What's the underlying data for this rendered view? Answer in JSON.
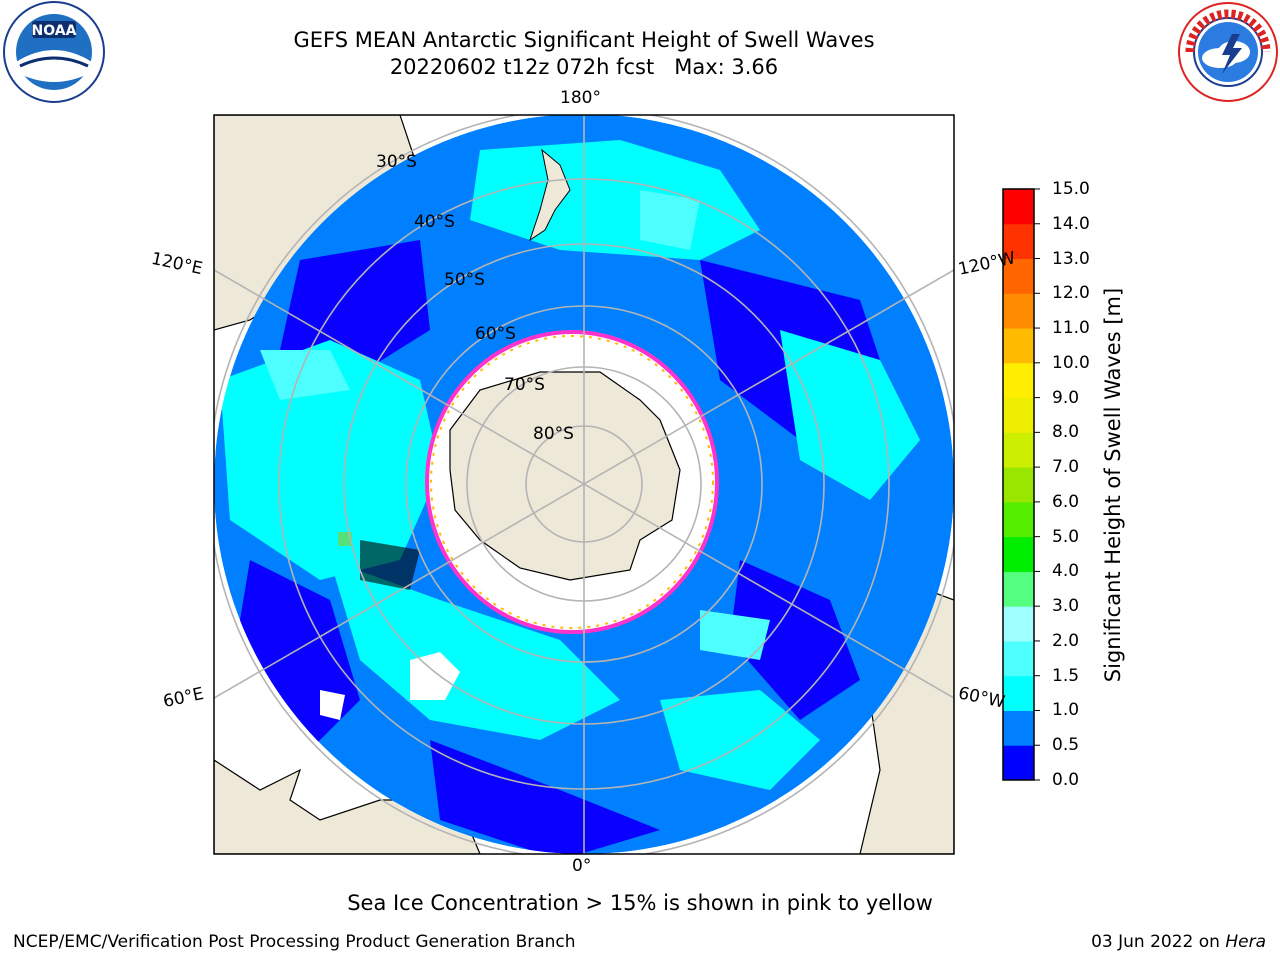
{
  "title": {
    "line1": "GEFS MEAN Antarctic Significant Height of Swell Waves",
    "line2": "20220602 t12z 072h fcst   Max: 3.66"
  },
  "logos": {
    "left": "noaa-logo",
    "right": "national-weather-service-logo"
  },
  "map": {
    "projection": "south-polar-stereographic",
    "longitude_labels": {
      "top": "180°",
      "bottom": "0°",
      "upper_left": "120°E",
      "lower_left": "60°E",
      "upper_right": "120°W",
      "lower_right": "60°W"
    },
    "latitude_labels": [
      "30°S",
      "40°S",
      "50°S",
      "60°S",
      "70°S",
      "80°S"
    ],
    "colors": {
      "ocean_low": "#0a00ff",
      "ocean_mid": "#0080ff",
      "ocean_cyan": "#00ffff",
      "ocean_light": "#4dffff",
      "land": "#ede8d8",
      "sea_ice": "#ffffff",
      "ice_edge": "#ff33cc",
      "graticule": "#b4b4b4"
    }
  },
  "colorbar": {
    "label": "Significant Height of Swell Waves [m]",
    "ticks": [
      "0.0",
      "0.5",
      "1.0",
      "1.5",
      "2.0",
      "3.0",
      "4.0",
      "5.0",
      "6.0",
      "7.0",
      "8.0",
      "9.0",
      "10.0",
      "11.0",
      "12.0",
      "13.0",
      "14.0",
      "15.0"
    ],
    "colors": [
      "#0000ff",
      "#0080ff",
      "#00ffff",
      "#4dffff",
      "#9ffffff",
      "#55ff80",
      "#00ee00",
      "#55ee00",
      "#99e600",
      "#ccee00",
      "#eeee00",
      "#ffee00",
      "#ffbb00",
      "#ff8c00",
      "#ff6600",
      "#ff3300",
      "#ff0000"
    ]
  },
  "note": "Sea Ice Concentration > 15% is shown in pink to yellow",
  "footer": {
    "left": "NCEP/EMC/Verification Post Processing Product Generation Branch",
    "right_date": "03 Jun 2022 on ",
    "right_host": "Hera"
  }
}
